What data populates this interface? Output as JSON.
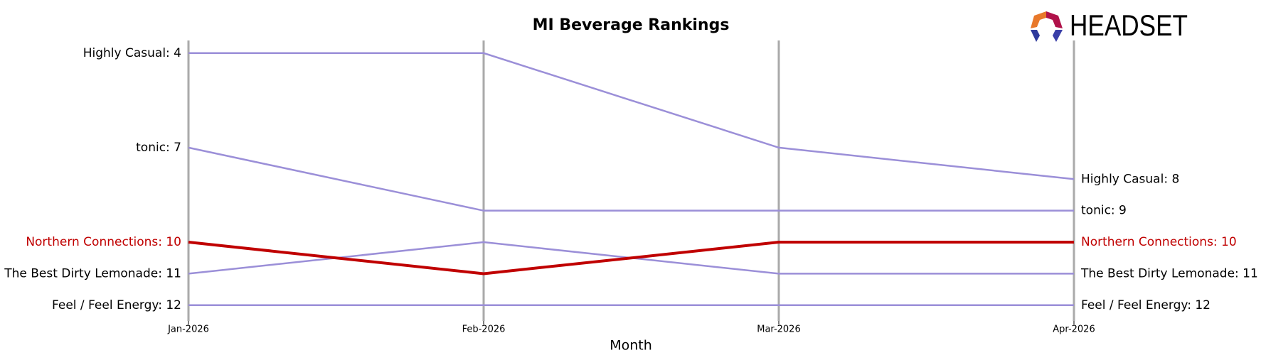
{
  "chart_data": {
    "type": "line",
    "title": "MI Beverage Rankings",
    "x_label": "Month",
    "logo_text": "HEADSET",
    "categories": [
      "Jan-2026",
      "Feb-2026",
      "Mar-2026",
      "Apr-2026"
    ],
    "ylim": [
      12.5,
      3.6
    ],
    "grid": true,
    "series": [
      {
        "name": "Highly Casual",
        "color": "#9b8fd8",
        "values": [
          4,
          4,
          7,
          8
        ],
        "value_labels": [
          "Highly Casual: 4",
          null,
          null,
          "Highly Casual: 8"
        ]
      },
      {
        "name": "tonic",
        "color": "#9b8fd8",
        "values": [
          7,
          9,
          9,
          9
        ],
        "value_labels": [
          "tonic: 7",
          null,
          null,
          "tonic: 9"
        ]
      },
      {
        "name": "Northern Connections",
        "color": "#c00000",
        "highlight": true,
        "values": [
          10,
          11,
          10,
          10
        ],
        "value_labels": [
          "Northern Connections: 10",
          null,
          null,
          "Northern Connections: 10"
        ]
      },
      {
        "name": "The Best Dirty Lemonade",
        "color": "#9b8fd8",
        "values": [
          11,
          10,
          11,
          11
        ],
        "value_labels": [
          "The Best Dirty Lemonade: 11",
          null,
          null,
          "The Best Dirty Lemonade: 11"
        ]
      },
      {
        "name": "Feel / Feel Energy",
        "color": "#9b8fd8",
        "values": [
          12,
          12,
          12,
          12
        ],
        "value_labels": [
          "Feel / Feel Energy: 12",
          null,
          null,
          "Feel / Feel Energy: 12"
        ]
      }
    ]
  }
}
